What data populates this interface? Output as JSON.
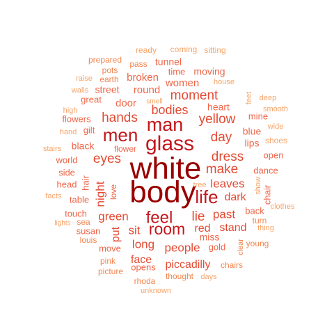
{
  "chart_data": {
    "type": "wordcloud",
    "colors": {
      "tier1": "#990000",
      "tier2": "#c4161c",
      "tier3": "#e34a33",
      "tier4": "#ef6548",
      "tier5": "#f2864f",
      "tier6": "#f7a468"
    },
    "words": [
      {
        "text": "white",
        "tier": 1
      },
      {
        "text": "body",
        "tier": 1
      },
      {
        "text": "glass",
        "tier": 2
      },
      {
        "text": "man",
        "tier": 2
      },
      {
        "text": "men",
        "tier": 2
      },
      {
        "text": "life",
        "tier": 2
      },
      {
        "text": "feel",
        "tier": 2
      },
      {
        "text": "room",
        "tier": 2
      },
      {
        "text": "eyes",
        "tier": 3
      },
      {
        "text": "hands",
        "tier": 3
      },
      {
        "text": "moment",
        "tier": 3
      },
      {
        "text": "bodies",
        "tier": 3
      },
      {
        "text": "yellow",
        "tier": 3
      },
      {
        "text": "dress",
        "tier": 3
      },
      {
        "text": "day",
        "tier": 3
      },
      {
        "text": "make",
        "tier": 3
      },
      {
        "text": "night",
        "tier": 3
      },
      {
        "text": "green",
        "tier": 3
      },
      {
        "text": "lie",
        "tier": 3
      },
      {
        "text": "past",
        "tier": 3
      },
      {
        "text": "sit",
        "tier": 3
      },
      {
        "text": "long",
        "tier": 3
      },
      {
        "text": "people",
        "tier": 3
      },
      {
        "text": "stand",
        "tier": 3
      },
      {
        "text": "red",
        "tier": 3
      },
      {
        "text": "leaves",
        "tier": 3
      },
      {
        "text": "dark",
        "tier": 3
      },
      {
        "text": "face",
        "tier": 3
      },
      {
        "text": "piccadilly",
        "tier": 3
      },
      {
        "text": "put",
        "tier": 3
      },
      {
        "text": "round",
        "tier": 4
      },
      {
        "text": "street",
        "tier": 4
      },
      {
        "text": "broken",
        "tier": 4
      },
      {
        "text": "women",
        "tier": 4
      },
      {
        "text": "tunnel",
        "tier": 4
      },
      {
        "text": "moving",
        "tier": 4
      },
      {
        "text": "time",
        "tier": 4
      },
      {
        "text": "door",
        "tier": 4
      },
      {
        "text": "heart",
        "tier": 4
      },
      {
        "text": "mine",
        "tier": 4
      },
      {
        "text": "blue",
        "tier": 4
      },
      {
        "text": "lips",
        "tier": 4
      },
      {
        "text": "black",
        "tier": 4
      },
      {
        "text": "flowers",
        "tier": 4
      },
      {
        "text": "gilt",
        "tier": 4
      },
      {
        "text": "great",
        "tier": 4
      },
      {
        "text": "open",
        "tier": 4
      },
      {
        "text": "dance",
        "tier": 4
      },
      {
        "text": "world",
        "tier": 4
      },
      {
        "text": "side",
        "tier": 4
      },
      {
        "text": "head",
        "tier": 4
      },
      {
        "text": "hair",
        "tier": 4
      },
      {
        "text": "love",
        "tier": 4
      },
      {
        "text": "chair",
        "tier": 4
      },
      {
        "text": "back",
        "tier": 4
      },
      {
        "text": "touch",
        "tier": 4
      },
      {
        "text": "table",
        "tier": 4
      },
      {
        "text": "susan",
        "tier": 4
      },
      {
        "text": "move",
        "tier": 4
      },
      {
        "text": "miss",
        "tier": 4
      },
      {
        "text": "gold",
        "tier": 4
      },
      {
        "text": "opens",
        "tier": 4
      },
      {
        "text": "flower",
        "tier": 4
      },
      {
        "text": "sea",
        "tier": 5
      },
      {
        "text": "turn",
        "tier": 5
      },
      {
        "text": "louis",
        "tier": 5
      },
      {
        "text": "clear",
        "tier": 5
      },
      {
        "text": "young",
        "tier": 5
      },
      {
        "text": "chairs",
        "tier": 5
      },
      {
        "text": "pink",
        "tier": 5
      },
      {
        "text": "picture",
        "tier": 5
      },
      {
        "text": "rhoda",
        "tier": 5
      },
      {
        "text": "thought",
        "tier": 5
      },
      {
        "text": "pass",
        "tier": 5
      },
      {
        "text": "pots",
        "tier": 5
      },
      {
        "text": "prepared",
        "tier": 5
      },
      {
        "text": "earth",
        "tier": 5
      },
      {
        "text": "ready",
        "tier": 6
      },
      {
        "text": "coming",
        "tier": 6
      },
      {
        "text": "sitting",
        "tier": 6
      },
      {
        "text": "raise",
        "tier": 6
      },
      {
        "text": "walls",
        "tier": 6
      },
      {
        "text": "smell",
        "tier": 6
      },
      {
        "text": "house",
        "tier": 6
      },
      {
        "text": "feet",
        "tier": 6
      },
      {
        "text": "deep",
        "tier": 6
      },
      {
        "text": "smooth",
        "tier": 6
      },
      {
        "text": "high",
        "tier": 6
      },
      {
        "text": "wide",
        "tier": 6
      },
      {
        "text": "hand",
        "tier": 6
      },
      {
        "text": "shoes",
        "tier": 6
      },
      {
        "text": "stairs",
        "tier": 6
      },
      {
        "text": "tree",
        "tier": 6
      },
      {
        "text": "show",
        "tier": 6
      },
      {
        "text": "facts",
        "tier": 6
      },
      {
        "text": "clothes",
        "tier": 6
      },
      {
        "text": "lights",
        "tier": 6
      },
      {
        "text": "thing",
        "tier": 6
      },
      {
        "text": "days",
        "tier": 6
      },
      {
        "text": "unknown",
        "tier": 6
      }
    ]
  }
}
